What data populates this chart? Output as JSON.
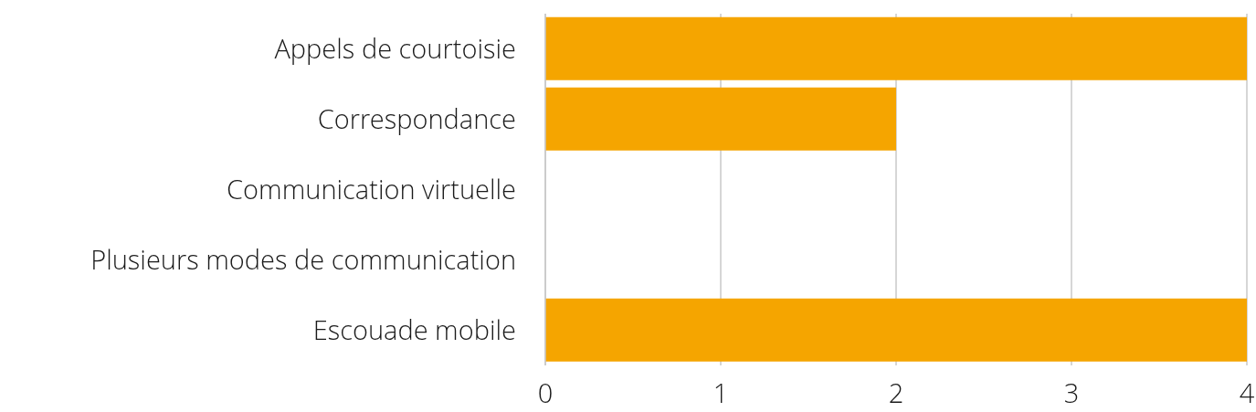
{
  "chart_data": {
    "type": "bar",
    "orientation": "horizontal",
    "categories": [
      "Appels de courtoisie",
      "Correspondance",
      "Communication virtuelle",
      "Plusieurs modes de communication",
      "Escouade mobile"
    ],
    "values": [
      4,
      2,
      0,
      0,
      4
    ],
    "color": "#f5a500",
    "xlim": [
      0,
      4
    ],
    "xticks": [
      0,
      1,
      2,
      3,
      4
    ],
    "grid": "x"
  }
}
